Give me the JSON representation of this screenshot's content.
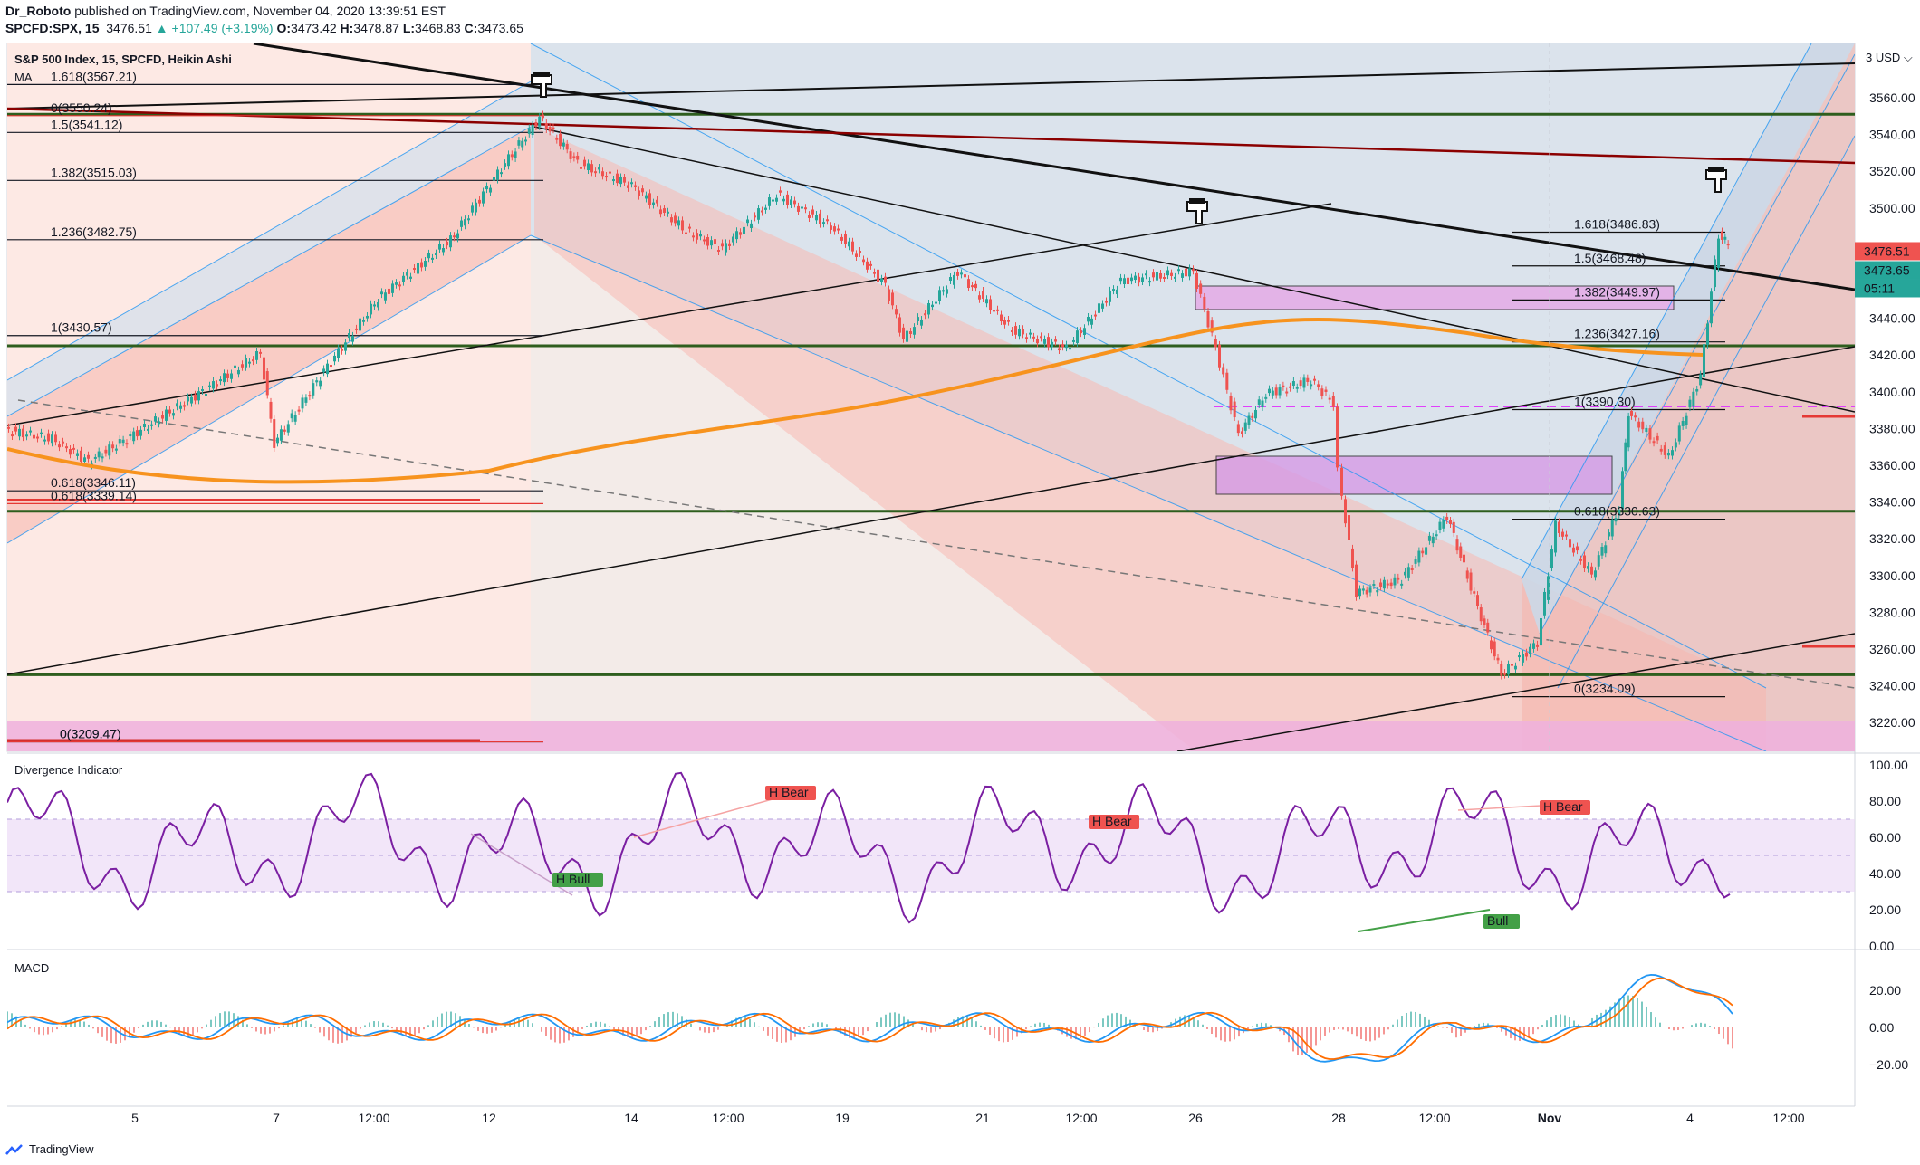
{
  "header": {
    "author": "Dr_Roboto",
    "published_text": "published on TradingView.com, November 04, 2020 13:39:51 EST",
    "symbol_line": "SPCFD:SPX, 15",
    "last": "3476.51",
    "change": "▲ +107.49 (+3.19%)",
    "o_label": "O:",
    "o_val": "3473.42",
    "h_label": "H:",
    "h_val": "3478.87",
    "l_label": "L:",
    "l_val": "3468.83",
    "c_label": "C:",
    "c_val": "3473.65"
  },
  "legend": {
    "title": "S&P 500 Index, 15, SPCFD, Heikin Ashi",
    "ma": "MA"
  },
  "price_axis": {
    "unit": "USD",
    "ticks": [
      "3560.00",
      "3540.00",
      "3520.00",
      "3500.00",
      "3440.00",
      "3420.00",
      "3400.00",
      "3380.00",
      "3360.00",
      "3340.00",
      "3320.00",
      "3300.00",
      "3280.00",
      "3260.00",
      "3240.00",
      "3220.00"
    ],
    "tick_values": [
      3560,
      3540,
      3520,
      3500,
      3440,
      3420,
      3400,
      3380,
      3360,
      3340,
      3320,
      3300,
      3280,
      3260,
      3240,
      3220
    ],
    "last_price_tag": "3476.51",
    "close_tag": "3473.65",
    "countdown_tag": "05:11"
  },
  "fib_left": [
    {
      "label": "1.618(3567.21)",
      "value": 3567.21,
      "color": "#131722"
    },
    {
      "label": "0(3550.24)",
      "value": 3550.24,
      "color": "#e53935"
    },
    {
      "label": "1.5(3541.12)",
      "value": 3541.12,
      "color": "#131722"
    },
    {
      "label": "1.382(3515.03)",
      "value": 3515.03,
      "color": "#131722"
    },
    {
      "label": "1.236(3482.75)",
      "value": 3482.75,
      "color": "#131722"
    },
    {
      "label": "1(3430.57)",
      "value": 3430.57,
      "color": "#131722"
    },
    {
      "label": "0.618(3346.11)",
      "value": 3346.11,
      "color": "#131722"
    },
    {
      "label": "0.618(3339.14)",
      "value": 3339.14,
      "color": "#e53935"
    },
    {
      "label": "0(3209.47)",
      "value": 3209.47,
      "color": "#131722"
    },
    {
      "label": "0(3209.47)",
      "value": 3209.47,
      "color": "#e53935"
    }
  ],
  "fib_right": [
    {
      "label": "1.618(3486.83)",
      "value": 3486.83
    },
    {
      "label": "1.5(3468.48)",
      "value": 3468.48
    },
    {
      "label": "1.382(3449.97)",
      "value": 3449.97
    },
    {
      "label": "1.236(3427.16)",
      "value": 3427.16
    },
    {
      "label": "1(3390.30)",
      "value": 3390.3
    },
    {
      "label": "0.618(3330.63)",
      "value": 3330.63
    },
    {
      "label": "0(3234.09)",
      "value": 3234.09
    }
  ],
  "time_axis": {
    "labels": [
      "5",
      "7",
      "12:00",
      "12",
      "14",
      "12:00",
      "19",
      "21",
      "12:00",
      "26",
      "28",
      "12:00",
      "Nov",
      "4",
      "12:00"
    ],
    "bold": [
      "Nov"
    ]
  },
  "divergence": {
    "title": "Divergence Indicator",
    "ticks": [
      "100.00",
      "80.00",
      "60.00",
      "40.00",
      "20.00",
      "0.00"
    ],
    "tick_values": [
      100,
      80,
      60,
      40,
      20,
      0
    ],
    "labels": [
      {
        "text": "H Bear",
        "kind": "bear"
      },
      {
        "text": "H Bull",
        "kind": "bull"
      },
      {
        "text": "H Bear",
        "kind": "bear"
      },
      {
        "text": "H Bear",
        "kind": "bear"
      },
      {
        "text": "Bull",
        "kind": "bull"
      }
    ]
  },
  "macd": {
    "title": "MACD",
    "ticks": [
      "20.00",
      "0.00",
      "−20.00"
    ],
    "tick_values": [
      20,
      0,
      -20
    ]
  },
  "footer": {
    "brand": "TradingView"
  },
  "colors": {
    "up": "#26a69a",
    "down": "#ef5350",
    "ma": "#f7931e",
    "rsi": "#7b1fa2",
    "green_line": "#2e5e1e",
    "darkred_line": "#8b0000",
    "channel_blue": "#2196f3",
    "bear_tag": "#ef5350",
    "bull_tag": "#43a047"
  }
}
